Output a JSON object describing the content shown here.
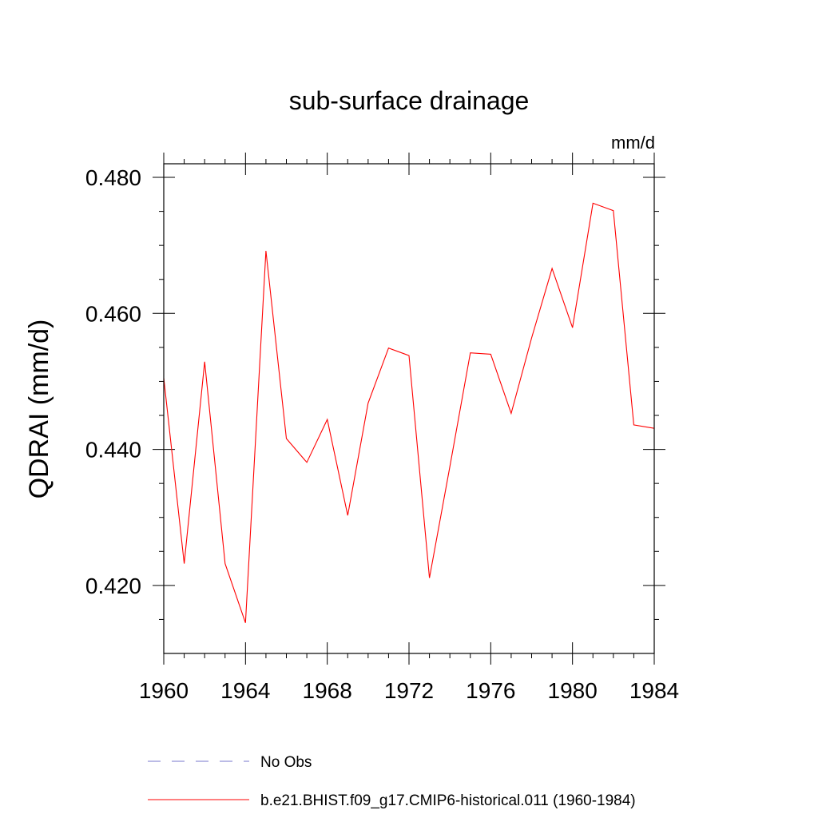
{
  "chart_data": {
    "type": "line",
    "title": "sub-surface drainage",
    "units": "mm/d",
    "ylabel": "QDRAI  (mm/d)",
    "xlabel": "",
    "xlim": [
      1960,
      1984
    ],
    "ylim": [
      0.41,
      0.482
    ],
    "x_ticks": [
      1960,
      1964,
      1968,
      1972,
      1976,
      1980,
      1984
    ],
    "y_ticks": [
      0.42,
      0.44,
      0.46,
      0.48
    ],
    "y_tick_labels": [
      "0.420",
      "0.440",
      "0.460",
      "0.480"
    ],
    "series": [
      {
        "name": "b.e21.BHIST.f09_g17.CMIP6-historical.011 (1960-1984)",
        "color": "#ff0000",
        "style": "solid",
        "x": [
          1960,
          1961,
          1962,
          1963,
          1964,
          1965,
          1966,
          1967,
          1968,
          1969,
          1970,
          1971,
          1972,
          1973,
          1974,
          1975,
          1976,
          1977,
          1978,
          1979,
          1980,
          1981,
          1982,
          1983,
          1984
        ],
        "y": [
          0.4505,
          0.4232,
          0.4529,
          0.4232,
          0.4145,
          0.4692,
          0.4416,
          0.4381,
          0.4444,
          0.4303,
          0.4468,
          0.4549,
          0.4538,
          0.4211,
          0.4375,
          0.4542,
          0.454,
          0.4453,
          0.4564,
          0.4666,
          0.4579,
          0.4762,
          0.4751,
          0.4436,
          0.4431
        ]
      }
    ],
    "legend": {
      "placement": "bottom",
      "entries": [
        {
          "label": "No Obs",
          "color": "#7777cc",
          "style": "dashed"
        },
        {
          "label": "b.e21.BHIST.f09_g17.CMIP6-historical.011 (1960-1984)",
          "color": "#ff0000",
          "style": "solid"
        }
      ]
    }
  }
}
